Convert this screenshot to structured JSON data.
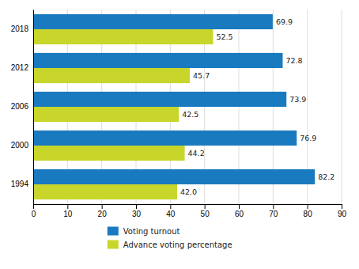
{
  "chart_data": {
    "type": "bar",
    "orientation": "horizontal",
    "categories": [
      "1994",
      "2000",
      "2006",
      "2012",
      "2018"
    ],
    "series": [
      {
        "name": "Voting turnout",
        "color": "#1a7abf",
        "values": [
          82.2,
          76.9,
          73.9,
          72.8,
          69.9
        ],
        "value_labels": [
          "82.2",
          "76.9",
          "73.9",
          "72.8",
          "69.9"
        ]
      },
      {
        "name": "Advance voting percentage",
        "color": "#c8d62b",
        "values": [
          42.0,
          44.2,
          42.5,
          45.7,
          52.5
        ],
        "value_labels": [
          "42.0",
          "44.2",
          "42.5",
          "45.7",
          "52.5"
        ]
      }
    ],
    "xlim": [
      0,
      90
    ],
    "xticks": [
      0,
      10,
      20,
      30,
      40,
      50,
      60,
      70,
      80,
      90
    ],
    "grid": true,
    "data_labels": true,
    "legend": "bottom"
  }
}
